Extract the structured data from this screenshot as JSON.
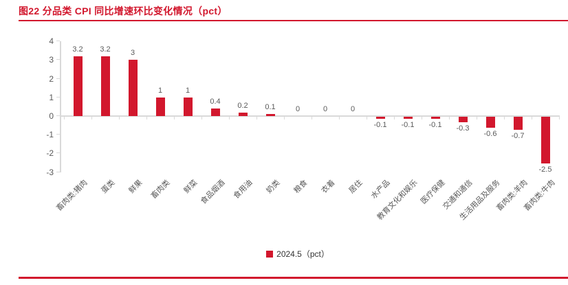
{
  "header": {
    "title": "图22 分品类 CPI 同比增速环比变化情况（pct）"
  },
  "legend": {
    "label": "2024.5（pct）"
  },
  "colors": {
    "accent_red": "#D2172D",
    "axis_gray": "#D9D9D9",
    "label_gray": "#595959",
    "legend_text": "#333333"
  },
  "chart_data": {
    "type": "bar",
    "title": "图22 分品类 CPI 同比增速环比变化情况（pct）",
    "series_name": "2024.5（pct）",
    "categories": [
      "畜肉类:猪肉",
      "蛋类",
      "鲜果",
      "畜肉类",
      "鲜菜",
      "食品烟酒",
      "食用油",
      "奶类",
      "粮食",
      "衣着",
      "居住",
      "水产品",
      "教育文化和娱乐",
      "医疗保健",
      "交通和通信",
      "生活用品及服务",
      "畜肉类:羊肉",
      "畜肉类:牛肉"
    ],
    "values": [
      3.2,
      3.2,
      3,
      1,
      1,
      0.4,
      0.2,
      0.1,
      0,
      0,
      0,
      -0.1,
      -0.1,
      -0.1,
      -0.3,
      -0.6,
      -0.7,
      -2.5
    ],
    "ylabel": "",
    "xlabel": "",
    "ylim": [
      -3,
      4
    ],
    "yticks": [
      4,
      3,
      2,
      1,
      0,
      -1,
      -2,
      -3
    ],
    "grid": false,
    "value_labels": true,
    "legend_position": "bottom",
    "bar_color": "#D2172D",
    "category_label_rotation_deg": 45
  }
}
